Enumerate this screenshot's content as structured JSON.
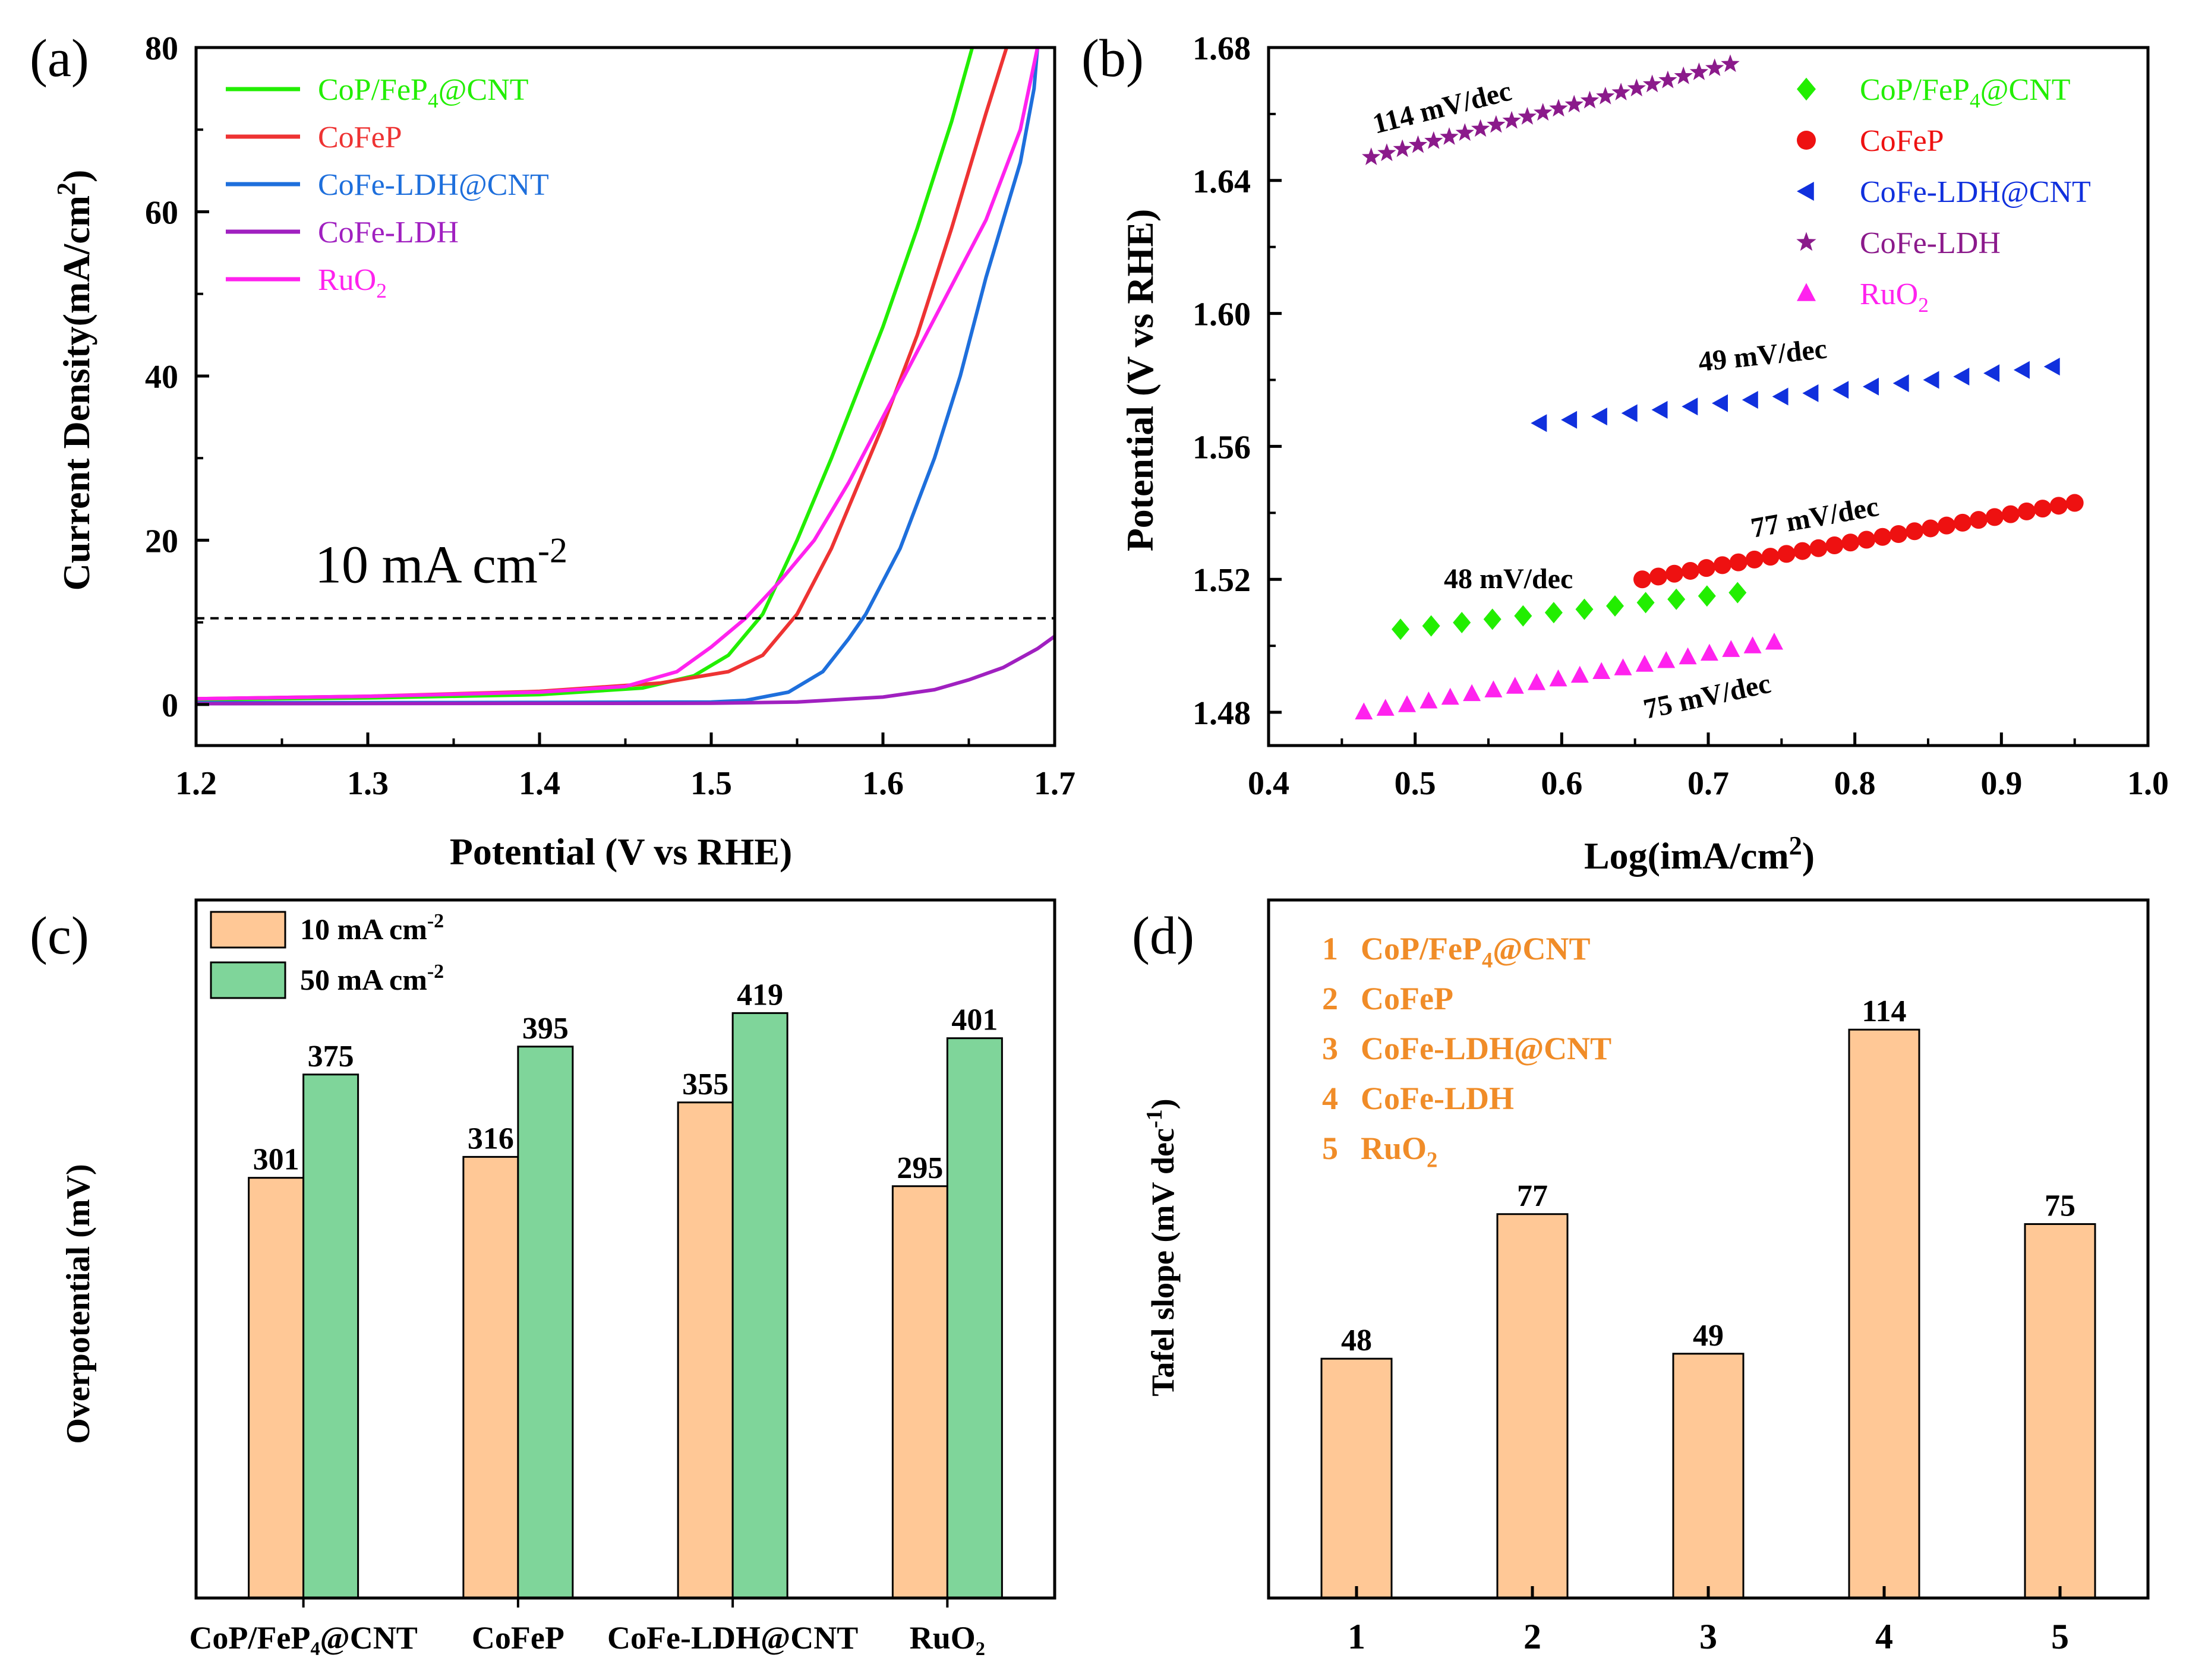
{
  "chart_data": [
    {
      "panel": "(a)",
      "type": "line",
      "xlabel": "Potential (V vs RHE)",
      "ylabel": "Current Density(mA/cm",
      "ylabel_sup": "2",
      "ylabel_tail": ")",
      "xlim": [
        1.2,
        1.7
      ],
      "ylim": [
        -5,
        80
      ],
      "xticks": [
        "1.2",
        "1.3",
        "1.4",
        "1.5",
        "1.6",
        "1.7"
      ],
      "xtick_values": [
        1.2,
        1.3,
        1.4,
        1.5,
        1.6,
        1.7
      ],
      "yticks": [
        "0",
        "20",
        "40",
        "60",
        "80"
      ],
      "ytick_values": [
        0,
        20,
        40,
        60,
        80
      ],
      "reference_line": {
        "y": 10.5,
        "style": "dashed",
        "label": "10 mA cm",
        "label_sup": "-2"
      },
      "series": [
        {
          "name": "CoP/FeP",
          "sub": "4",
          "tail": "@CNT",
          "color": "#22ee00",
          "points": [
            [
              1.2,
              0.6
            ],
            [
              1.3,
              0.8
            ],
            [
              1.4,
              1.2
            ],
            [
              1.46,
              2.0
            ],
            [
              1.49,
              3.5
            ],
            [
              1.51,
              6.0
            ],
            [
              1.53,
              11.0
            ],
            [
              1.55,
              20.0
            ],
            [
              1.57,
              30.0
            ],
            [
              1.6,
              46.0
            ],
            [
              1.62,
              58.0
            ],
            [
              1.64,
              71.0
            ],
            [
              1.652,
              80.0
            ]
          ]
        },
        {
          "name": "CoFeP",
          "color": "#ee3333",
          "points": [
            [
              1.2,
              0.7
            ],
            [
              1.3,
              1.0
            ],
            [
              1.4,
              1.6
            ],
            [
              1.47,
              2.6
            ],
            [
              1.51,
              4.0
            ],
            [
              1.53,
              6.0
            ],
            [
              1.55,
              11.0
            ],
            [
              1.57,
              19.0
            ],
            [
              1.6,
              34.0
            ],
            [
              1.62,
              45.0
            ],
            [
              1.64,
              58.0
            ],
            [
              1.66,
              72.0
            ],
            [
              1.672,
              80.0
            ]
          ]
        },
        {
          "name": "CoFe-LDH@CNT",
          "color": "#1e6fdc",
          "points": [
            [
              1.2,
              0.2
            ],
            [
              1.4,
              0.25
            ],
            [
              1.5,
              0.3
            ],
            [
              1.52,
              0.5
            ],
            [
              1.545,
              1.5
            ],
            [
              1.565,
              4.0
            ],
            [
              1.58,
              8.0
            ],
            [
              1.59,
              11.0
            ],
            [
              1.61,
              19.0
            ],
            [
              1.63,
              30.0
            ],
            [
              1.645,
              40.0
            ],
            [
              1.66,
              52.0
            ],
            [
              1.68,
              66.0
            ],
            [
              1.688,
              75.0
            ],
            [
              1.69,
              80.0
            ]
          ]
        },
        {
          "name": "CoFe-LDH",
          "color": "#a020c0",
          "points": [
            [
              1.2,
              0.1
            ],
            [
              1.5,
              0.15
            ],
            [
              1.55,
              0.3
            ],
            [
              1.6,
              0.9
            ],
            [
              1.63,
              1.8
            ],
            [
              1.65,
              3.0
            ],
            [
              1.67,
              4.5
            ],
            [
              1.69,
              6.8
            ],
            [
              1.7,
              8.3
            ]
          ]
        },
        {
          "name": "RuO",
          "sub": "2",
          "tail": "",
          "color": "#ff22ee",
          "points": [
            [
              1.2,
              0.7
            ],
            [
              1.3,
              1.0
            ],
            [
              1.4,
              1.5
            ],
            [
              1.45,
              2.2
            ],
            [
              1.48,
              4.0
            ],
            [
              1.5,
              7.0
            ],
            [
              1.52,
              10.5
            ],
            [
              1.54,
              15.0
            ],
            [
              1.56,
              20.0
            ],
            [
              1.58,
              27.0
            ],
            [
              1.6,
              35.0
            ],
            [
              1.62,
              43.0
            ],
            [
              1.64,
              51.0
            ],
            [
              1.66,
              59.0
            ],
            [
              1.68,
              70.0
            ],
            [
              1.69,
              80.0
            ]
          ]
        }
      ]
    },
    {
      "panel": "(b)",
      "type": "scatter",
      "xlabel": "Log(imA/cm",
      "xlabel_sup": "2",
      "xlabel_tail": ")",
      "ylabel": "Potential (V vs RHE)",
      "xlim": [
        0.4,
        1.0
      ],
      "ylim": [
        1.47,
        1.68
      ],
      "xticks": [
        "0.4",
        "0.5",
        "0.6",
        "0.7",
        "0.8",
        "0.9",
        "1.0"
      ],
      "xtick_values": [
        0.4,
        0.5,
        0.6,
        0.7,
        0.8,
        0.9,
        1.0
      ],
      "yticks": [
        "1.48",
        "1.52",
        "1.56",
        "1.60",
        "1.64",
        "1.68"
      ],
      "ytick_values": [
        1.48,
        1.52,
        1.56,
        1.6,
        1.64,
        1.68
      ],
      "series": [
        {
          "name": "CoP/FeP",
          "sub": "4",
          "tail": "@CNT",
          "color": "#22ee00",
          "marker": "diamond",
          "x_range": [
            0.49,
            0.72
          ],
          "y_range": [
            1.505,
            1.516
          ],
          "n": 12,
          "slope_label": "48 mV/dec"
        },
        {
          "name": "CoFeP",
          "color": "#ee1111",
          "marker": "circle",
          "x_range": [
            0.655,
            0.95
          ],
          "y_range": [
            1.52,
            1.543
          ],
          "n": 28,
          "slope_label": "77 mV/dec"
        },
        {
          "name": "CoFe-LDH@CNT",
          "color": "#1030dd",
          "marker": "triangle-left",
          "x_range": [
            0.585,
            0.935
          ],
          "y_range": [
            1.567,
            1.584
          ],
          "n": 18,
          "slope_label": "49 mV/dec"
        },
        {
          "name": "CoFe-LDH",
          "color": "#8b1a8b",
          "marker": "star",
          "x_range": [
            0.47,
            0.715
          ],
          "y_range": [
            1.647,
            1.675
          ],
          "n": 24,
          "slope_label": "114 mV/dec"
        },
        {
          "name": "RuO",
          "sub": "2",
          "tail": "",
          "color": "#ff22ee",
          "marker": "triangle-up",
          "x_range": [
            0.465,
            0.745
          ],
          "y_range": [
            1.48,
            1.501
          ],
          "n": 20,
          "slope_label": "75 mV/dec"
        }
      ]
    },
    {
      "panel": "(c)",
      "type": "bar",
      "ylabel": "Overpotential (mV)",
      "ylim": [
        0,
        500
      ],
      "categories": [
        "CoP/FeP₄@CNT",
        "CoFeP",
        "CoFe-LDH@CNT",
        "RuO₂"
      ],
      "series": [
        {
          "name": "10 mA cm",
          "sup": "-2",
          "color": "#ffc896",
          "values": [
            301,
            316,
            355,
            295
          ]
        },
        {
          "name": "50 mA cm",
          "sup": "-2",
          "color": "#7fd59a",
          "values": [
            375,
            395,
            419,
            401
          ]
        }
      ]
    },
    {
      "panel": "(d)",
      "type": "bar",
      "ylabel": "Tafel slope (mV dec",
      "ylabel_sup": "-1",
      "ylabel_tail": ")",
      "ylim": [
        0,
        140
      ],
      "categories": [
        "1",
        "2",
        "3",
        "4",
        "5"
      ],
      "values": [
        48,
        77,
        49,
        114,
        75
      ],
      "color": "#ffc896",
      "legend": [
        {
          "num": "1",
          "name": "CoP/FeP",
          "sub": "4",
          "tail": "@CNT"
        },
        {
          "num": "2",
          "name": "CoFeP"
        },
        {
          "num": "3",
          "name": "CoFe-LDH@CNT"
        },
        {
          "num": "4",
          "name": "CoFe-LDH"
        },
        {
          "num": "5",
          "name": "RuO",
          "sub": "2",
          "tail": ""
        }
      ],
      "legend_color": "#f08c28"
    }
  ]
}
